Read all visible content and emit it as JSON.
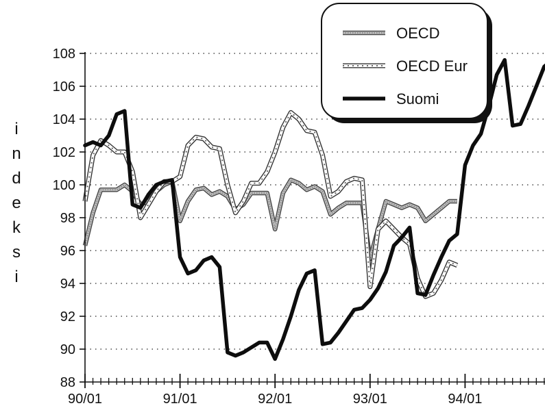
{
  "chart_data": {
    "type": "line",
    "ylabel": "indeksi",
    "xlabel": "",
    "title": "",
    "ylim": [
      88,
      108
    ],
    "xlim": [
      0,
      59
    ],
    "grid": "horizontal-dotted",
    "legend_position": "top-right",
    "y_ticks": [
      "88",
      "90",
      "92",
      "94",
      "96",
      "98",
      "100",
      "102",
      "104",
      "106",
      "108"
    ],
    "x_ticks": [
      {
        "x": 0,
        "label": "90/01"
      },
      {
        "x": 12,
        "label": "91/01"
      },
      {
        "x": 24,
        "label": "92/01"
      },
      {
        "x": 36,
        "label": "93/01"
      },
      {
        "x": 48,
        "label": "94/01"
      }
    ],
    "series": [
      {
        "name": "OECD",
        "style": "gray-hatched",
        "x": [
          0,
          1,
          2,
          3,
          4,
          5,
          6,
          7,
          8,
          9,
          10,
          11,
          12,
          13,
          14,
          15,
          16,
          17,
          18,
          19,
          20,
          21,
          22,
          23,
          24,
          25,
          26,
          27,
          28,
          29,
          30,
          31,
          32,
          33,
          34,
          35,
          36,
          37,
          38,
          39,
          40,
          41,
          42,
          43,
          44,
          45,
          46,
          47
        ],
        "y": [
          96.3,
          98.3,
          99.7,
          99.7,
          99.7,
          100.0,
          99.6,
          98.8,
          99.0,
          99.6,
          100.0,
          100.2,
          97.8,
          99.0,
          99.7,
          99.8,
          99.4,
          99.6,
          99.3,
          98.5,
          98.8,
          99.5,
          99.5,
          99.5,
          97.3,
          99.5,
          100.3,
          100.1,
          99.7,
          99.9,
          99.6,
          98.2,
          98.6,
          98.9,
          98.9,
          98.9,
          95.5,
          97.3,
          99.0,
          98.8,
          98.6,
          98.8,
          98.6,
          97.8,
          98.2,
          98.6,
          99.0,
          99.0
        ]
      },
      {
        "name": "OECD Eur",
        "style": "white-dashed-outline",
        "x": [
          0,
          1,
          2,
          3,
          4,
          5,
          6,
          7,
          8,
          9,
          10,
          11,
          12,
          13,
          14,
          15,
          16,
          17,
          18,
          19,
          20,
          21,
          22,
          23,
          24,
          25,
          26,
          27,
          28,
          29,
          30,
          31,
          32,
          33,
          34,
          35,
          36,
          37,
          38,
          39,
          40,
          41,
          42,
          43,
          44,
          45,
          46,
          47
        ],
        "y": [
          99.0,
          101.8,
          102.7,
          102.4,
          102.0,
          102.0,
          100.8,
          98.0,
          98.8,
          99.6,
          100.2,
          100.2,
          100.5,
          102.4,
          102.9,
          102.8,
          102.3,
          102.2,
          100.0,
          98.3,
          99.0,
          100.1,
          100.1,
          100.8,
          102.0,
          103.5,
          104.4,
          104.0,
          103.3,
          103.2,
          101.8,
          99.3,
          99.6,
          100.2,
          100.4,
          100.3,
          93.8,
          97.3,
          97.8,
          97.3,
          96.8,
          96.4,
          94.3,
          93.2,
          93.4,
          94.2,
          95.3,
          95.1
        ]
      },
      {
        "name": "Suomi",
        "style": "black-thick",
        "x": [
          0,
          1,
          2,
          3,
          4,
          5,
          6,
          7,
          8,
          9,
          10,
          11,
          12,
          13,
          14,
          15,
          16,
          17,
          18,
          19,
          20,
          21,
          22,
          23,
          24,
          25,
          26,
          27,
          28,
          29,
          30,
          31,
          32,
          33,
          34,
          35,
          36,
          37,
          38,
          39,
          40,
          41,
          42,
          43,
          44,
          45,
          46,
          47,
          48,
          49,
          50,
          51,
          52,
          53,
          54,
          55,
          56,
          57,
          58,
          59
        ],
        "y": [
          102.4,
          102.6,
          102.4,
          103.0,
          104.3,
          104.5,
          98.8,
          98.6,
          99.4,
          100.0,
          100.2,
          100.3,
          95.6,
          94.6,
          94.8,
          95.4,
          95.6,
          95.0,
          89.8,
          89.6,
          89.8,
          90.1,
          90.4,
          90.4,
          89.4,
          90.6,
          92.0,
          93.6,
          94.6,
          94.8,
          90.3,
          90.4,
          91.0,
          91.7,
          92.4,
          92.5,
          93.0,
          93.7,
          94.7,
          96.3,
          96.8,
          97.4,
          93.4,
          93.3,
          94.5,
          95.6,
          96.6,
          97.0,
          101.2,
          102.4,
          103.1,
          104.8,
          106.7,
          107.6,
          103.6,
          103.7,
          104.8,
          106.0,
          107.2,
          107.6
        ]
      }
    ]
  }
}
